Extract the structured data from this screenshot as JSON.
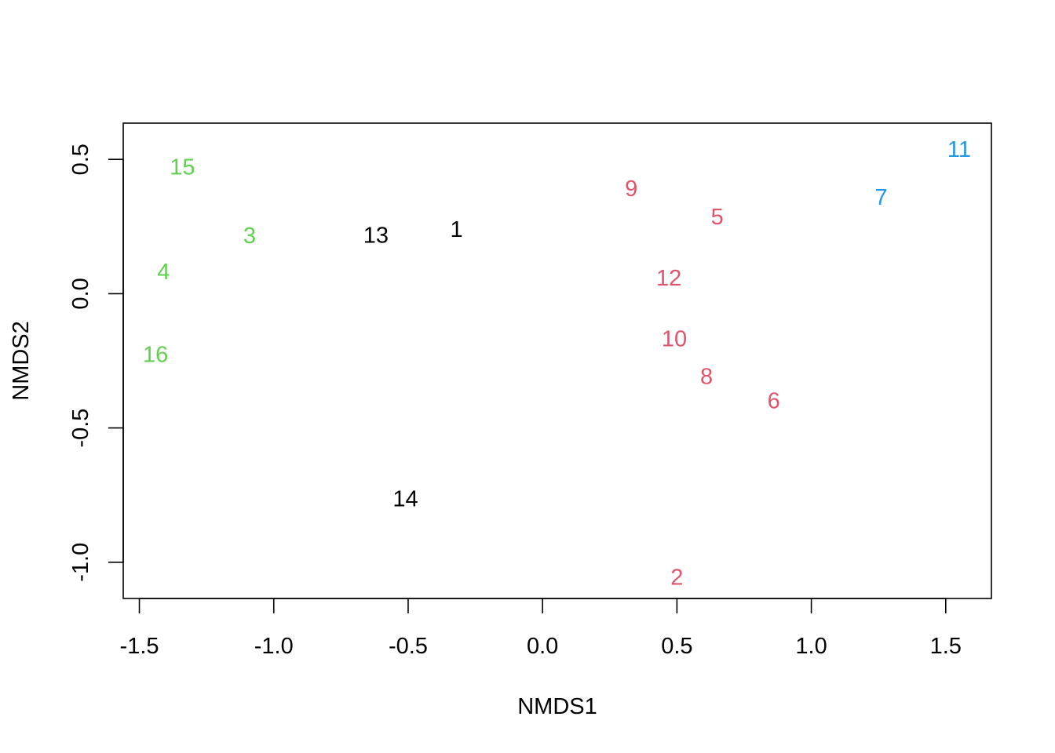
{
  "chart_data": {
    "type": "scatter",
    "title": "",
    "xlabel": "NMDS1",
    "ylabel": "NMDS2",
    "xlim": [
      -1.56,
      1.67
    ],
    "ylim": [
      -1.135,
      0.635
    ],
    "xticks": [
      -1.5,
      -1.0,
      -0.5,
      0.0,
      0.5,
      1.0,
      1.5
    ],
    "yticks": [
      0.5,
      0.0,
      -0.5,
      -1.0
    ],
    "xtick_labels": [
      "-1.5",
      "-1.0",
      "-0.5",
      "0.0",
      "0.5",
      "1.0",
      "1.5"
    ],
    "ytick_labels": [
      "0.5",
      "0.0",
      "-0.5",
      "-1.0"
    ],
    "grid": false,
    "legend": "none",
    "group_colors": {
      "black": "#000000",
      "green": "#61d04f",
      "red": "#df536b",
      "blue": "#2297e6"
    },
    "points": [
      {
        "label": "1",
        "x": -0.32,
        "y": 0.238,
        "color": "#000000"
      },
      {
        "label": "2",
        "x": 0.5,
        "y": -1.058,
        "color": "#df536b"
      },
      {
        "label": "3",
        "x": -1.09,
        "y": 0.215,
        "color": "#61d04f"
      },
      {
        "label": "4",
        "x": -1.41,
        "y": 0.08,
        "color": "#61d04f"
      },
      {
        "label": "5",
        "x": 0.65,
        "y": 0.285,
        "color": "#df536b"
      },
      {
        "label": "6",
        "x": 0.86,
        "y": -0.4,
        "color": "#df536b"
      },
      {
        "label": "7",
        "x": 1.26,
        "y": 0.358,
        "color": "#2297e6"
      },
      {
        "label": "8",
        "x": 0.61,
        "y": -0.31,
        "color": "#df536b"
      },
      {
        "label": "9",
        "x": 0.33,
        "y": 0.39,
        "color": "#df536b"
      },
      {
        "label": "10",
        "x": 0.49,
        "y": -0.17,
        "color": "#df536b"
      },
      {
        "label": "11",
        "x": 1.55,
        "y": 0.535,
        "color": "#2297e6"
      },
      {
        "label": "12",
        "x": 0.47,
        "y": 0.057,
        "color": "#df536b"
      },
      {
        "label": "13",
        "x": -0.62,
        "y": 0.216,
        "color": "#000000"
      },
      {
        "label": "14",
        "x": -0.51,
        "y": -0.765,
        "color": "#000000"
      },
      {
        "label": "15",
        "x": -1.34,
        "y": 0.47,
        "color": "#61d04f"
      },
      {
        "label": "16",
        "x": -1.44,
        "y": -0.228,
        "color": "#61d04f"
      }
    ]
  }
}
